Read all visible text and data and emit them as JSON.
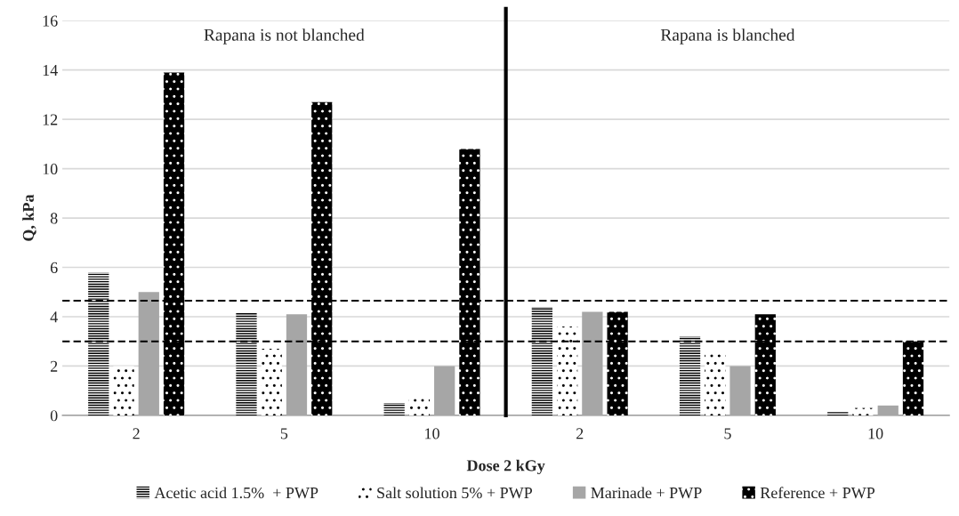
{
  "chart_data": [
    {
      "type": "bar",
      "categories": [
        "2",
        "5",
        "10"
      ],
      "xlabel": "Dose 2 kGy",
      "ylabel": "Q, kPa",
      "series": [
        {
          "name": "Acetic acid 1.5%  + PWP",
          "color": "#000000",
          "values": [
            5.8,
            4.15,
            0.5
          ]
        },
        {
          "name": "Salt solution 5% + PWP",
          "color": "#ffffff",
          "values": [
            2.0,
            2.7,
            0.8
          ]
        },
        {
          "name": "Marinade + PWP",
          "color": "#a6a6a6",
          "values": [
            5.0,
            4.1,
            2.0
          ]
        },
        {
          "name": "Reference + PWP",
          "color": "#000000",
          "values": [
            13.9,
            12.7,
            10.8
          ]
        }
      ],
      "ylim": [
        0,
        16
      ],
      "yticks": [
        0,
        2,
        4,
        6,
        8,
        10,
        12,
        14,
        16
      ],
      "ref_lines": [
        {
          "axis": "y",
          "value": 4.65,
          "color": "#000000",
          "line_style": "dashed"
        },
        {
          "axis": "y",
          "value": 3.0,
          "color": "#000000",
          "line_style": "dashed"
        }
      ],
      "annotations": [
        "Rapana is not blanched"
      ],
      "grid": "y",
      "legend": "bottom"
    },
    {
      "type": "bar",
      "categories": [
        "2",
        "5",
        "10"
      ],
      "series": [
        {
          "color": "#000000",
          "values": [
            4.4,
            3.2,
            0.15
          ]
        },
        {
          "color": "#ffffff",
          "values": [
            3.6,
            2.5,
            0.3
          ]
        },
        {
          "color": "#a6a6a6",
          "values": [
            4.2,
            2.0,
            0.4
          ]
        },
        {
          "color": "#000000",
          "values": [
            4.2,
            4.1,
            3.0
          ]
        }
      ],
      "ylim": [
        0,
        16
      ],
      "tick_labels": "x",
      "ref_lines": [
        {
          "axis": "y",
          "value": 4.65,
          "color": "#000000",
          "line_style": "dashed"
        },
        {
          "axis": "y",
          "value": 3.0,
          "color": "#000000",
          "line_style": "dashed"
        }
      ],
      "annotations": [
        "Rapana is blanched"
      ],
      "grid": "y"
    }
  ]
}
